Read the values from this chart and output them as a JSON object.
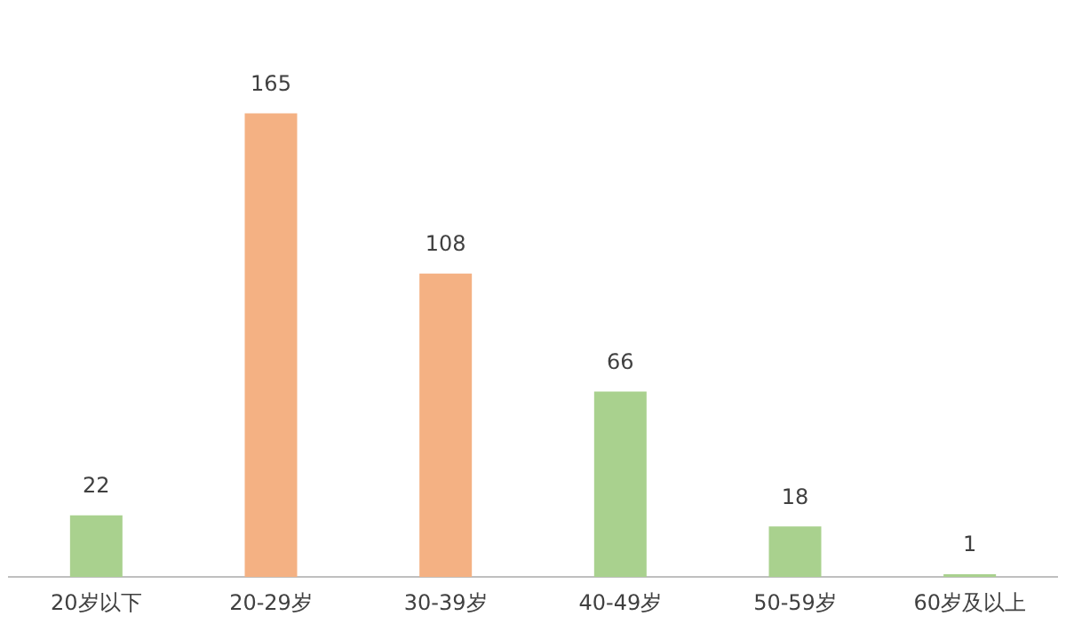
{
  "chart_data": {
    "type": "bar",
    "categories": [
      "20岁以下",
      "20-29岁",
      "30-39岁",
      "40-49岁",
      "50-59岁",
      "60岁及以上"
    ],
    "values": [
      22,
      165,
      108,
      66,
      18,
      1
    ],
    "colors": [
      "#a9d18e",
      "#f4b183",
      "#f4b183",
      "#a9d18e",
      "#a9d18e",
      "#a9d18e"
    ],
    "data_labels": true
  }
}
